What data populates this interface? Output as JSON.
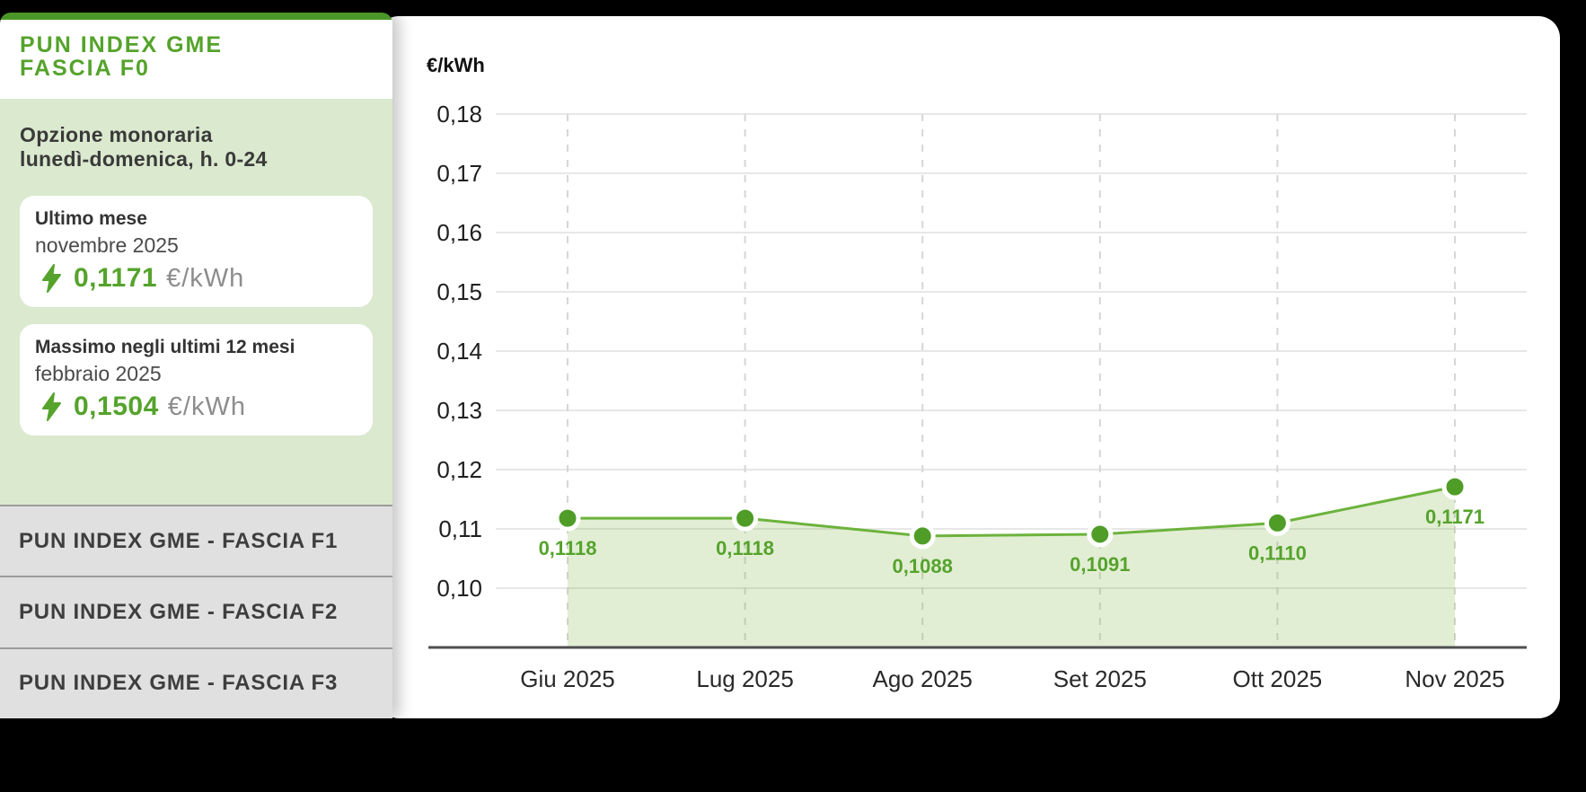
{
  "page": {
    "background": "#000000"
  },
  "sidebar": {
    "title_line1": "PUN INDEX GME",
    "title_line2": "FASCIA F0",
    "subtitle_line1": "Opzione monoraria",
    "subtitle_line2": "lunedì-domenica, h. 0-24",
    "cards": [
      {
        "title": "Ultimo mese",
        "period": "novembre 2025",
        "value": "0,1171",
        "unit": "€/kWh"
      },
      {
        "title": "Massimo negli ultimi 12 mesi",
        "period": "febbraio 2025",
        "value": "0,1504",
        "unit": "€/kWh"
      }
    ],
    "tabs": [
      {
        "label": "PUN INDEX GME - FASCIA F1"
      },
      {
        "label": "PUN INDEX GME - FASCIA F2"
      },
      {
        "label": "PUN INDEX GME - FASCIA F3"
      }
    ]
  },
  "chart_data": {
    "type": "area",
    "title": "",
    "xlabel": "",
    "ylabel": "€/kWh",
    "unit_label": "€/kWh",
    "categories": [
      "Giu 2025",
      "Lug 2025",
      "Ago 2025",
      "Set 2025",
      "Ott 2025",
      "Nov 2025"
    ],
    "values": [
      0.1118,
      0.1118,
      0.1088,
      0.1091,
      0.111,
      0.1171
    ],
    "value_labels": [
      "0,1118",
      "0,1118",
      "0,1088",
      "0,1091",
      "0,1110",
      "0,1171"
    ],
    "ylim": [
      0.1,
      0.18
    ],
    "ytick_labels": [
      "0,10",
      "0,11",
      "0,12",
      "0,13",
      "0,14",
      "0,15",
      "0,16",
      "0,17",
      "0,18"
    ],
    "grid": true,
    "legend": "none",
    "colors": {
      "accent_green": "#55a32c",
      "line_green": "#6cb33c",
      "point_green": "#4f9d27",
      "area_fill": "rgba(122,178,60,0.22)",
      "grid_horizontal": "#e7e7e7",
      "grid_vertical_dashed": "#d6d6d6",
      "axis_line": "#4f4f4f",
      "tick_text": "#1f1f1f",
      "month_text": "#2a2a2a"
    }
  }
}
